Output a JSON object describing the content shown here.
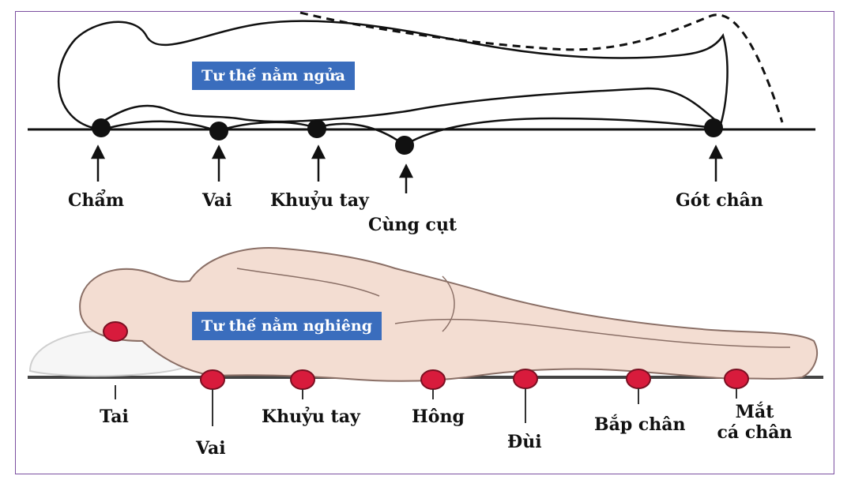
{
  "supine": {
    "title": "Tư thế nằm ngửa",
    "points": [
      "Chẩm",
      "Vai",
      "Khuỷu tay",
      "Cùng cụt",
      "Gót chân"
    ]
  },
  "lateral": {
    "title": "Tư thế nằm nghiêng",
    "points": [
      "Tai",
      "Vai",
      "Khuỷu tay",
      "Hông",
      "Đùi",
      "Bắp chân"
    ],
    "ankle": {
      "line1": "Mắt",
      "line2": "cá chân"
    }
  },
  "colors": {
    "title_bg": "#3a6dbd",
    "pressure_point_supine": "#111111",
    "pressure_point_lateral": "#d81b3c",
    "skin": "#f3ddd2",
    "frame": "#7b4fa0"
  }
}
